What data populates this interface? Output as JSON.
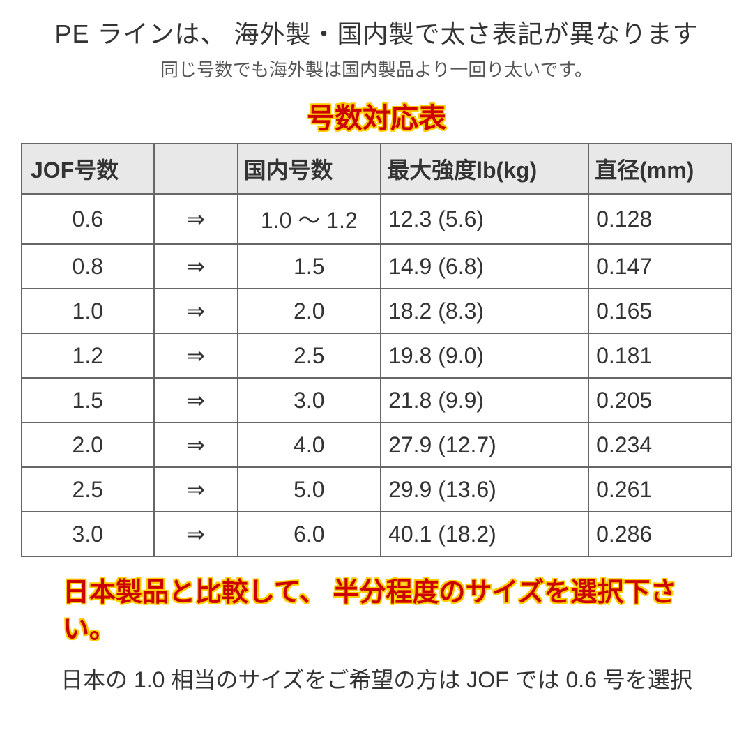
{
  "header": {
    "title": "PE ラインは、 海外製・国内製で太さ表記が異なります",
    "subtitle": "同じ号数でも海外製は国内製品より一回り太いです。",
    "table_title": "号数対応表"
  },
  "table": {
    "columns": [
      "JOF号数",
      "",
      "国内号数",
      "最大強度lb(kg)",
      "直径(mm)"
    ],
    "arrow": "⇒",
    "rows": [
      {
        "jof": "0.6",
        "domestic": "1.0 ～ 1.2",
        "strength": "12.3 (5.6)",
        "diameter": "0.128"
      },
      {
        "jof": "0.8",
        "domestic": "1.5",
        "strength": "14.9 (6.8)",
        "diameter": "0.147"
      },
      {
        "jof": "1.0",
        "domestic": "2.0",
        "strength": "18.2 (8.3)",
        "diameter": "0.165"
      },
      {
        "jof": "1.2",
        "domestic": "2.5",
        "strength": "19.8 (9.0)",
        "diameter": "0.181"
      },
      {
        "jof": "1.5",
        "domestic": "3.0",
        "strength": "21.8 (9.9)",
        "diameter": "0.205"
      },
      {
        "jof": "2.0",
        "domestic": "4.0",
        "strength": "27.9 (12.7)",
        "diameter": "0.234"
      },
      {
        "jof": "2.5",
        "domestic": "5.0",
        "strength": "29.9 (13.6)",
        "diameter": "0.261"
      },
      {
        "jof": "3.0",
        "domestic": "6.0",
        "strength": "40.1 (18.2)",
        "diameter": "0.286"
      }
    ],
    "header_bg": "#e8e8e8",
    "border_color": "#666666",
    "text_color": "#333333",
    "cell_fontsize": 32
  },
  "notes": {
    "highlight": "日本製品と比較して、 半分程度のサイズを選択下さい。",
    "bottom": "日本の 1.0 相当のサイズをご希望の方は JOF では 0.6 号を選択"
  },
  "colors": {
    "highlight_text": "#cc0000",
    "highlight_outline": "#ffcc00",
    "body_text": "#333333",
    "subtitle_text": "#555555",
    "background": "#ffffff"
  }
}
